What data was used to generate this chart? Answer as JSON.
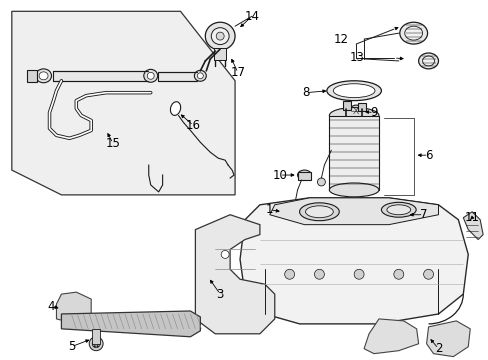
{
  "bg_color": "#ffffff",
  "line_color": "#1a1a1a",
  "gray_line": "#555555",
  "light_gray": "#cccccc",
  "mid_gray": "#aaaaaa",
  "fig_width": 4.89,
  "fig_height": 3.6,
  "dpi": 100,
  "font_size": 8.5
}
